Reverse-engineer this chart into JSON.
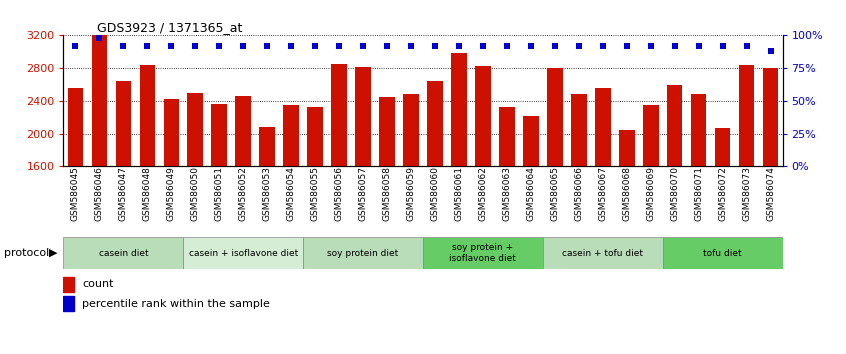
{
  "title": "GDS3923 / 1371365_at",
  "samples": [
    "GSM586045",
    "GSM586046",
    "GSM586047",
    "GSM586048",
    "GSM586049",
    "GSM586050",
    "GSM586051",
    "GSM586052",
    "GSM586053",
    "GSM586054",
    "GSM586055",
    "GSM586056",
    "GSM586057",
    "GSM586058",
    "GSM586059",
    "GSM586060",
    "GSM586061",
    "GSM586062",
    "GSM586063",
    "GSM586064",
    "GSM586065",
    "GSM586066",
    "GSM586067",
    "GSM586068",
    "GSM586069",
    "GSM586070",
    "GSM586071",
    "GSM586072",
    "GSM586073",
    "GSM586074"
  ],
  "counts": [
    2560,
    3200,
    2640,
    2840,
    2420,
    2500,
    2360,
    2460,
    2080,
    2350,
    2320,
    2850,
    2810,
    2450,
    2480,
    2640,
    2980,
    2830,
    2330,
    2220,
    2800,
    2490,
    2560,
    2040,
    2350,
    2600,
    2490,
    2070,
    2840,
    2800
  ],
  "percentiles": [
    92,
    98,
    92,
    92,
    92,
    92,
    92,
    92,
    92,
    92,
    92,
    92,
    92,
    92,
    92,
    92,
    92,
    92,
    92,
    92,
    92,
    92,
    92,
    92,
    92,
    92,
    92,
    92,
    92,
    88
  ],
  "ylim_left": [
    1600,
    3200
  ],
  "ylim_right": [
    0,
    100
  ],
  "bar_color": "#cc1100",
  "dot_color": "#0000cc",
  "yticks_left": [
    1600,
    2000,
    2400,
    2800,
    3200
  ],
  "yticks_right": [
    0,
    25,
    50,
    75,
    100
  ],
  "ytick_right_labels": [
    "0%",
    "25%",
    "50%",
    "75%",
    "100%"
  ],
  "protocol_groups": [
    {
      "label": "casein diet",
      "start": 0,
      "end": 4,
      "color": "#b8ddb8"
    },
    {
      "label": "casein + isoflavone diet",
      "start": 5,
      "end": 9,
      "color": "#d4edd4"
    },
    {
      "label": "soy protein diet",
      "start": 10,
      "end": 14,
      "color": "#b8ddb8"
    },
    {
      "label": "soy protein +\nisoflavone diet",
      "start": 15,
      "end": 19,
      "color": "#66cc66"
    },
    {
      "label": "casein + tofu diet",
      "start": 20,
      "end": 24,
      "color": "#b8ddb8"
    },
    {
      "label": "tofu diet",
      "start": 25,
      "end": 29,
      "color": "#66cc66"
    }
  ],
  "legend_items": [
    {
      "label": "count",
      "color": "#cc1100"
    },
    {
      "label": "percentile rank within the sample",
      "color": "#0000cc"
    }
  ],
  "bg_color": "#ffffff"
}
